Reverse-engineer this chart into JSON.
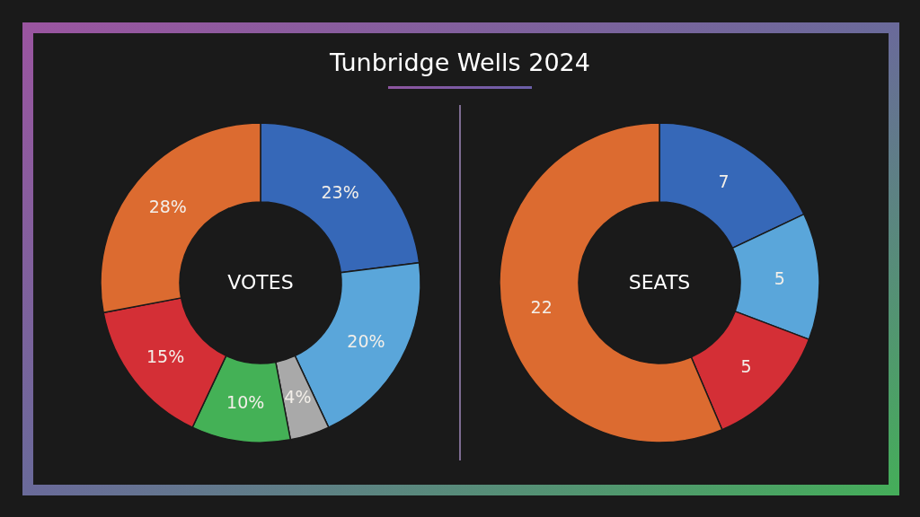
{
  "chart_data": [
    {
      "type": "donut",
      "title": "Tunbridge Wells 2024",
      "categories": [
        null,
        null,
        null,
        null,
        null,
        null
      ],
      "values": [
        23,
        20,
        4,
        10,
        15,
        28
      ],
      "colors": [
        "#3668b8",
        "#5aa6da",
        "#a9a9a9",
        "#44b156",
        "#d42f36",
        "#dc6b30"
      ],
      "value_labels": [
        "23%",
        "20%",
        "4%",
        "10%",
        "15%",
        "28%"
      ],
      "annotations": [
        "VOTES"
      ]
    },
    {
      "type": "donut",
      "categories": [
        null,
        null,
        null,
        null
      ],
      "values": [
        7,
        5,
        5,
        22
      ],
      "colors": [
        "#3668b8",
        "#5aa6da",
        "#d42f36",
        "#dc6b30"
      ],
      "data_labels": true,
      "annotations": [
        "SEATS"
      ]
    }
  ]
}
